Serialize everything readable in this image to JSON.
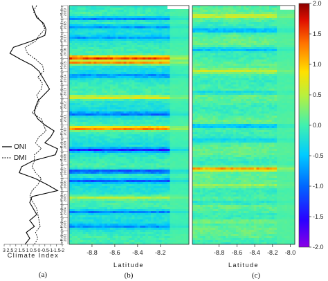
{
  "chart_data": [
    {
      "type": "line",
      "panel": "(a)",
      "xlabel": "Climate Index",
      "xticks": [
        3,
        2.5,
        2,
        1.5,
        1,
        0.5,
        0,
        -0.5,
        -1,
        -1.5,
        -2
      ],
      "xlim": [
        3,
        -2
      ],
      "legend": [
        "ONI",
        "DMI"
      ],
      "legend_position": "left-middle",
      "time_axis": {
        "orientation": "vertical",
        "start_year": 2002,
        "end_year": 2019,
        "years_top_to_bottom": [
          2019,
          2018,
          2017,
          2016,
          2015,
          2014,
          2013,
          2012,
          2011,
          2010,
          2009,
          2008,
          2007,
          2006,
          2005,
          2004,
          2003,
          2002
        ],
        "month_labels": [
          "Sep",
          "May",
          "Jan"
        ]
      },
      "series": [
        {
          "name": "ONI",
          "style": "solid",
          "values": [
            0.6,
            0.4,
            0.2,
            -0.4,
            -0.6,
            -0.5,
            0.7,
            2.2,
            2.5,
            1.6,
            0.6,
            0.0,
            -0.3,
            -0.6,
            -0.9,
            -0.4,
            0.1,
            0.3,
            0.4,
            0.1,
            -0.5,
            -1.3,
            -1.0,
            -0.5,
            -1.6,
            -1.4,
            0.5,
            1.5,
            1.7,
            0.3,
            -0.7,
            -1.6,
            0.6,
            0.8,
            0.5,
            0.2,
            0.8,
            0.4,
            1.1,
            0.8,
            1.2
          ]
        },
        {
          "name": "DMI",
          "style": "dashed",
          "values": [
            0.2,
            0.5,
            0.1,
            -0.3,
            -0.5,
            0.0,
            0.3,
            1.2,
            1.0,
            0.3,
            -0.3,
            -0.4,
            0.1,
            -0.3,
            -0.2,
            0.2,
            0.0,
            0.2,
            0.6,
            -0.2,
            -0.4,
            -0.6,
            0.0,
            0.3,
            -0.2,
            0.4,
            0.4,
            0.6,
            0.3,
            -0.2,
            0.1,
            0.6,
            0.8,
            0.5,
            0.2,
            0.1,
            0.0,
            -0.1,
            0.3,
            0.1,
            0.4
          ]
        }
      ]
    },
    {
      "type": "heatmap",
      "panel": "(b)",
      "xlabel": "Latitude",
      "xticks": [
        -8.8,
        -8.6,
        -8.4,
        -8.2
      ],
      "xlim": [
        -9.0,
        -7.95
      ],
      "colormap": "jet",
      "zlim": [
        -2,
        2
      ],
      "y_axis": "time 2002 (bottom) to 2019 (top)"
    },
    {
      "type": "heatmap",
      "panel": "(c)",
      "xlabel": "Latitude",
      "xticks": [
        -8.8,
        -8.6,
        -8.4,
        -8.2,
        -8.0
      ],
      "xlim": [
        -9.1,
        -7.95
      ],
      "colormap": "jet",
      "zlim": [
        -2,
        2
      ],
      "y_axis": "time 2002 (bottom) to 2019 (top)"
    }
  ],
  "colorbar": {
    "ticks": [
      "2.0",
      "1.5",
      "1.0",
      "0.5",
      "0.0",
      "-0.5",
      "-1.0",
      "-1.5",
      "-2.0"
    ],
    "range": [
      -2,
      2
    ],
    "colormap": "jet"
  },
  "colors": {
    "jet_low": "#7f00ff",
    "jet_mid": "#5ff3c8",
    "jet_high": "#8b0000",
    "oni_line": "#000000",
    "dmi_line": "#000000"
  }
}
